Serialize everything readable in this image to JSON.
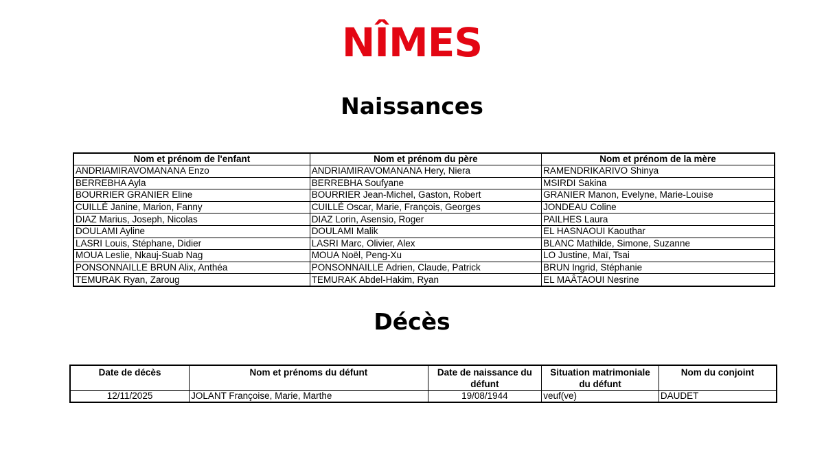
{
  "logo": {
    "text": "NÎMES",
    "color": "#e30613"
  },
  "births": {
    "title": "Naissances",
    "headers": [
      "Nom et prénom de l'enfant",
      "Nom et prénom du père",
      "Nom et prénom de la mère"
    ],
    "rows": [
      [
        "ANDRIAMIRAVOMANANA Enzo",
        "ANDRIAMIRAVOMANANA Hery, Niera",
        "RAMENDRIKARIVO Shinya"
      ],
      [
        "BERREBHA Ayla",
        "BERREBHA Soufyane",
        "MSIRDI Sakina"
      ],
      [
        "BOURRIER GRANIER Eline",
        "BOURRIER Jean-Michel, Gaston, Robert",
        "GRANIER Manon, Evelyne, Marie-Louise"
      ],
      [
        "CUILLÉ Janine, Marion, Fanny",
        "CUILLÉ Oscar, Marie, François, Georges",
        "JONDEAU Coline"
      ],
      [
        "DIAZ Marius, Joseph, Nicolas",
        "DIAZ Lorin, Asensio, Roger",
        "PAILHES Laura"
      ],
      [
        "DOULAMI Ayline",
        "DOULAMI Malik",
        "EL HASNAOUI Kaouthar"
      ],
      [
        "LASRI Louis, Stéphane, Didier",
        "LASRI Marc, Olivier, Alex",
        "BLANC Mathilde, Simone, Suzanne"
      ],
      [
        "MOUA Leslie, Nkauj-Suab Nag",
        "MOUA Noël, Peng-Xu",
        "LO Justine, Maï, Tsai"
      ],
      [
        "PONSONNAILLE BRUN Alix, Anthéa",
        "PONSONNAILLE Adrien, Claude, Patrick",
        "BRUN Ingrid, Stéphanie"
      ],
      [
        "TEMURAK Ryan, Zaroug",
        "TEMURAK Abdel-Hakim, Ryan",
        "EL MAÂTAOUI Nesrine"
      ]
    ]
  },
  "deaths": {
    "title": "Décès",
    "headers": [
      "Date de décès",
      "Nom et prénoms du défunt",
      "Date de naissance du défunt",
      "Situation matrimoniale du défunt",
      "Nom du conjoint"
    ],
    "rows": [
      [
        "12/11/2025",
        "JOLANT Françoise, Marie, Marthe",
        "19/08/1944",
        "veuf(ve)",
        "DAUDET"
      ]
    ]
  }
}
